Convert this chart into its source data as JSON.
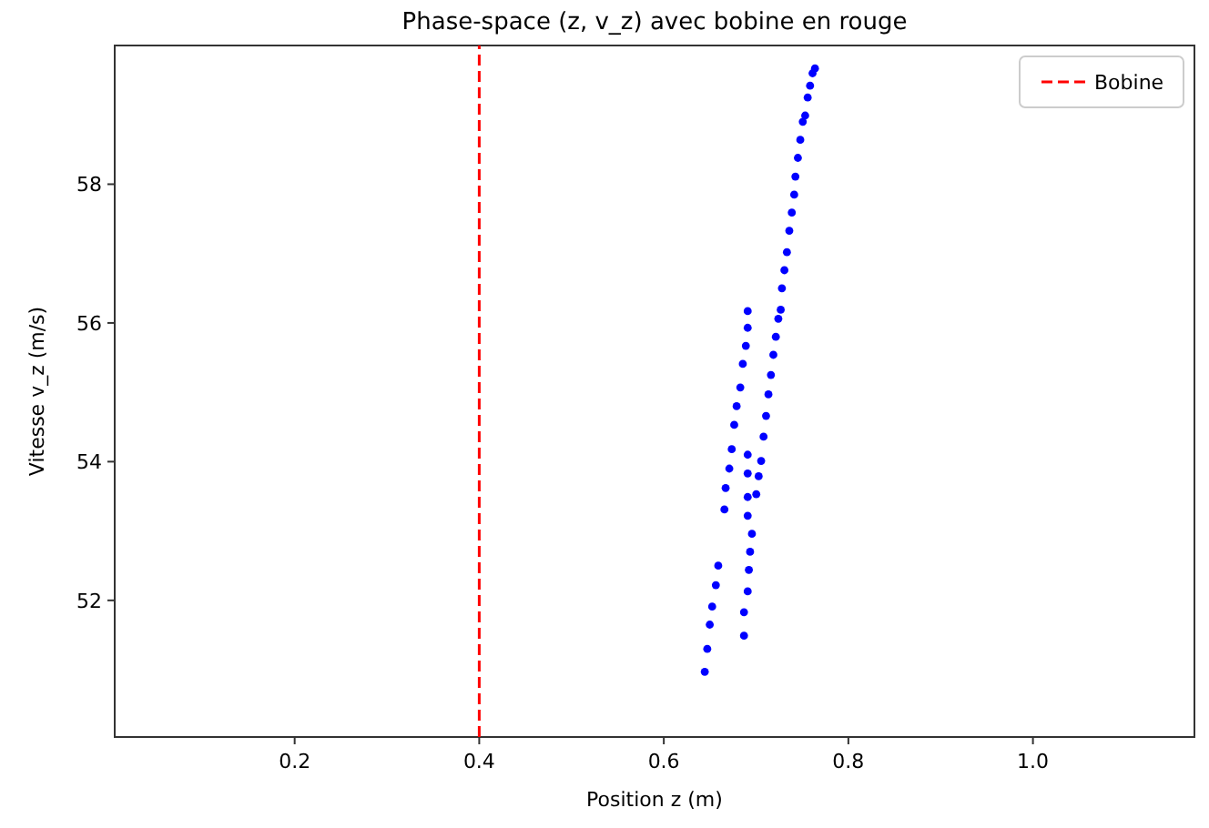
{
  "chart_data": {
    "type": "scatter",
    "title": "Phase-space (z, v_z) avec bobine en rouge",
    "xlabel": "Position z (m)",
    "ylabel": "Vitesse v_z (m/s)",
    "xlim": [
      0.005,
      1.175
    ],
    "ylim": [
      50.03,
      60.0
    ],
    "xticks": [
      {
        "value": 0.2,
        "label": "0.2"
      },
      {
        "value": 0.4,
        "label": "0.4"
      },
      {
        "value": 0.6,
        "label": "0.6"
      },
      {
        "value": 0.8,
        "label": "0.8"
      },
      {
        "value": 1.0,
        "label": "1.0"
      }
    ],
    "yticks": [
      52,
      54,
      56,
      58
    ],
    "grid": false,
    "legend": "top right",
    "series": [
      {
        "type": "line",
        "name": "Bobine",
        "color": "#ff0000",
        "line_style": "dashed",
        "values": [
          50.03,
          60.0
        ]
      },
      {
        "color": "#0000ff",
        "marker": "circle",
        "x": [
          0.6444,
          0.6471,
          0.6498,
          0.6524,
          0.6564,
          0.659,
          0.6657,
          0.667,
          0.671,
          0.6736,
          0.6763,
          0.6789,
          0.6829,
          0.6856,
          0.6889,
          0.6909,
          0.6909,
          0.6869,
          0.6869,
          0.6909,
          0.6922,
          0.6935,
          0.6955,
          0.6909,
          0.6909,
          0.6909,
          0.6909,
          0.7002,
          0.7028,
          0.7055,
          0.7081,
          0.7108,
          0.7134,
          0.7161,
          0.7187,
          0.7214,
          0.7241,
          0.7267,
          0.728,
          0.7307,
          0.7334,
          0.736,
          0.7387,
          0.7413,
          0.7426,
          0.7453,
          0.7479,
          0.7506,
          0.7532,
          0.7559,
          0.7585,
          0.7612,
          0.7638
        ],
        "values": [
          50.97,
          51.3,
          51.65,
          51.91,
          52.22,
          52.5,
          53.31,
          53.62,
          53.9,
          54.18,
          54.53,
          54.8,
          55.07,
          55.41,
          55.67,
          55.93,
          56.17,
          51.49,
          51.83,
          52.13,
          52.44,
          52.7,
          52.96,
          53.22,
          53.49,
          53.83,
          54.1,
          53.53,
          53.79,
          54.01,
          54.36,
          54.66,
          54.97,
          55.25,
          55.54,
          55.8,
          56.06,
          56.19,
          56.5,
          56.76,
          57.02,
          57.33,
          57.59,
          57.85,
          58.11,
          58.38,
          58.64,
          58.9,
          58.99,
          59.25,
          59.42,
          59.6,
          59.67
        ]
      }
    ],
    "x": [
      0.4,
      0.4
    ]
  }
}
